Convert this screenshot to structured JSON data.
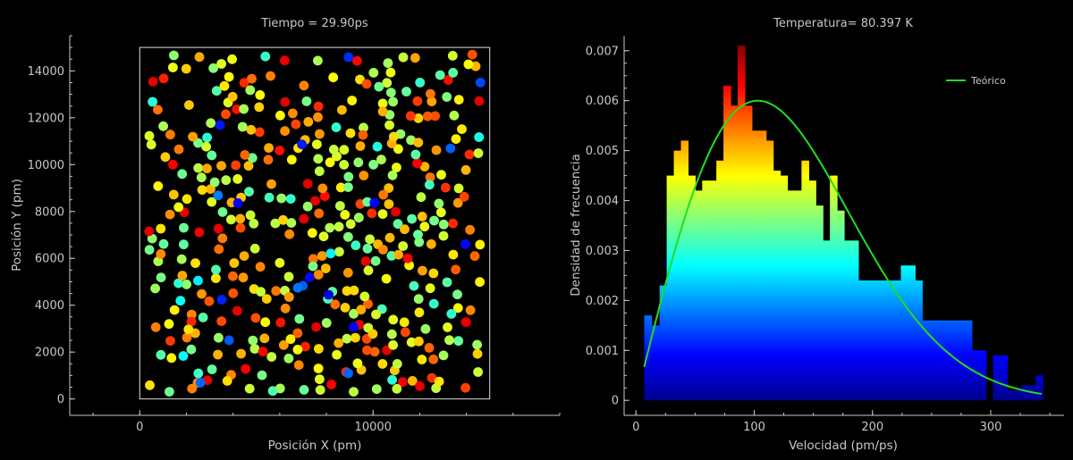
{
  "chart_data": [
    {
      "type": "scatter",
      "title": "Tiempo = 29.90ps",
      "xlabel": "Posición X (pm)",
      "ylabel": "Posición Y (pm)",
      "xlim": [
        -3000,
        18000
      ],
      "ylim": [
        -700,
        15500
      ],
      "box": {
        "x": [
          0,
          15000
        ],
        "y": [
          0,
          15000
        ]
      },
      "x_ticks": [
        0,
        10000
      ],
      "y_ticks": [
        0,
        2000,
        4000,
        6000,
        8000,
        10000,
        12000,
        14000
      ],
      "colormap": "jet",
      "n_particles": 600,
      "seed": 7
    },
    {
      "type": "bar",
      "title": "Temperatura= 80.397 K",
      "xlabel": "Velocidad (pm/ps)",
      "ylabel": "Densidad de frecuencia",
      "xlim": [
        -10,
        362
      ],
      "ylim": [
        -0.0003,
        0.0073
      ],
      "x_ticks": [
        0,
        100,
        200,
        300
      ],
      "y_ticks": [
        0,
        0.001,
        0.002,
        0.003,
        0.004,
        0.005,
        0.006,
        0.007
      ],
      "y_tick_labels": [
        "0",
        "0.001",
        "0.002",
        "0.003",
        "0.004",
        "0.005",
        "0.006",
        "0.007"
      ],
      "bin_edges": [
        7,
        13,
        20,
        26,
        32,
        38,
        44,
        50,
        56,
        62,
        68,
        74,
        80,
        86,
        92,
        98,
        104,
        110,
        116,
        122,
        128,
        134,
        140,
        146,
        152,
        158,
        164,
        170,
        176,
        182,
        188,
        194,
        200,
        206,
        212,
        218,
        224,
        230,
        236,
        242,
        248,
        254,
        260,
        266,
        272,
        278,
        284,
        290,
        296,
        302,
        308,
        314,
        320,
        326,
        332,
        338,
        344
      ],
      "values": [
        0.0017,
        0.0015,
        0.0023,
        0.0045,
        0.005,
        0.0052,
        0.0045,
        0.0042,
        0.0044,
        0.0044,
        0.0048,
        0.0063,
        0.0059,
        0.0071,
        0.0059,
        0.0054,
        0.0054,
        0.0052,
        0.0046,
        0.0045,
        0.0042,
        0.0042,
        0.0048,
        0.0044,
        0.0039,
        0.0032,
        0.0045,
        0.0038,
        0.0032,
        0.0032,
        0.0024,
        0.0024,
        0.0024,
        0.0024,
        0.0024,
        0.0024,
        0.0027,
        0.0027,
        0.0024,
        0.0016,
        0.0016,
        0.0016,
        0.0016,
        0.0016,
        0.0016,
        0.0016,
        0.001,
        0.001,
        0.0,
        0.0009,
        0.0009,
        0.0002,
        0.0002,
        0.0003,
        0.0003,
        0.0005
      ],
      "series": [
        {
          "name": "Teórico",
          "color": "#22dd22",
          "curve": "maxwell-boltzmann-2d",
          "peak_x": 103,
          "peak_y": 0.006
        }
      ],
      "legend_position": "top-right",
      "colormap": "jet"
    }
  ]
}
